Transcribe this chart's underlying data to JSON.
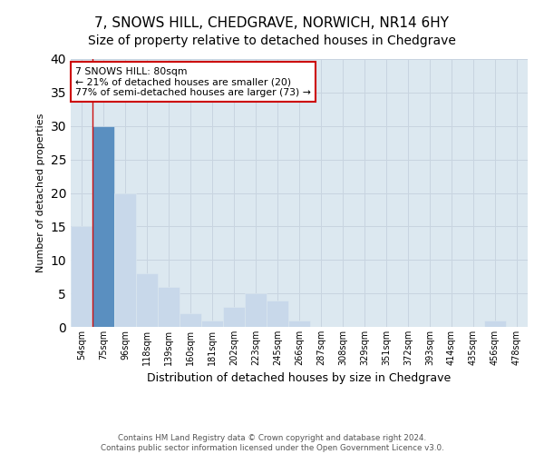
{
  "title1": "7, SNOWS HILL, CHEDGRAVE, NORWICH, NR14 6HY",
  "title2": "Size of property relative to detached houses in Chedgrave",
  "xlabel": "Distribution of detached houses by size in Chedgrave",
  "ylabel": "Number of detached properties",
  "bar_labels": [
    "54sqm",
    "75sqm",
    "96sqm",
    "118sqm",
    "139sqm",
    "160sqm",
    "181sqm",
    "202sqm",
    "223sqm",
    "245sqm",
    "266sqm",
    "287sqm",
    "308sqm",
    "329sqm",
    "351sqm",
    "372sqm",
    "393sqm",
    "414sqm",
    "435sqm",
    "456sqm",
    "478sqm"
  ],
  "bar_values": [
    15,
    30,
    20,
    8,
    6,
    2,
    1,
    3,
    5,
    4,
    1,
    0,
    0,
    0,
    0,
    0,
    0,
    0,
    0,
    1,
    0
  ],
  "bar_color_default": "#c8d8ea",
  "bar_color_highlight": "#5a8fc0",
  "highlight_index": 1,
  "annotation_text": "7 SNOWS HILL: 80sqm\n← 21% of detached houses are smaller (20)\n77% of semi-detached houses are larger (73) →",
  "annotation_box_color": "#ffffff",
  "annotation_box_edgecolor": "#cc0000",
  "ylim": [
    0,
    40
  ],
  "yticks": [
    0,
    5,
    10,
    15,
    20,
    25,
    30,
    35,
    40
  ],
  "grid_color": "#c8d4e0",
  "background_color": "#dce8f0",
  "footer_text": "Contains HM Land Registry data © Crown copyright and database right 2024.\nContains public sector information licensed under the Open Government Licence v3.0.",
  "vline_x": 0.5,
  "title_fontsize": 11,
  "subtitle_fontsize": 10,
  "xlabel_fontsize": 9,
  "ylabel_fontsize": 8
}
